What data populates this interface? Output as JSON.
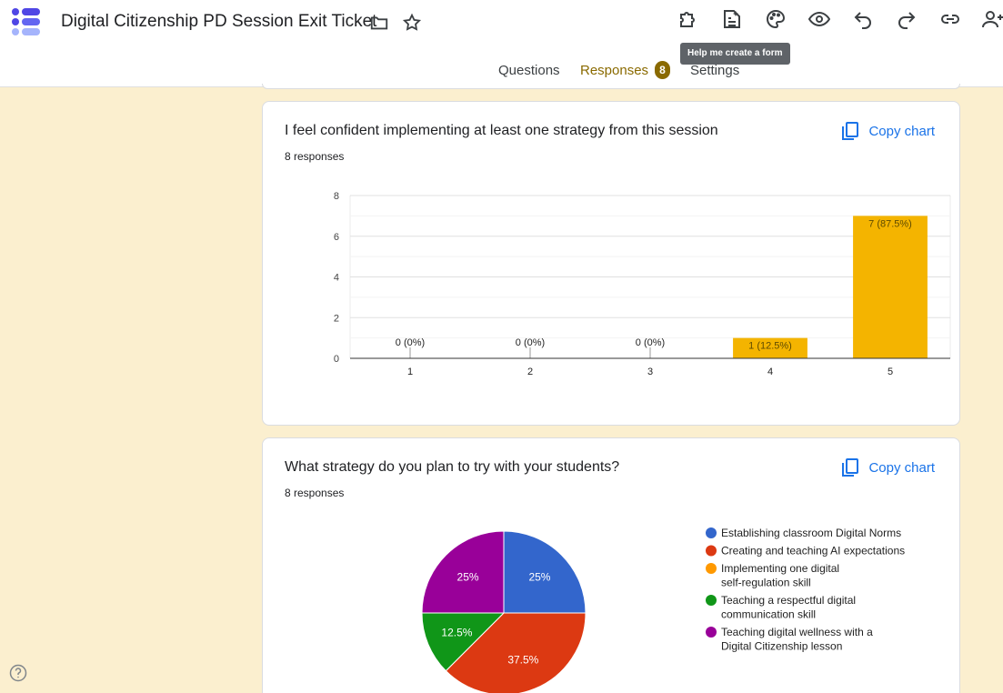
{
  "app": {
    "title": "Digital Citizenship PD Session Exit Ticket",
    "tooltip": "Help me create a form"
  },
  "icons": {
    "logo": "forms-logo-icon",
    "folder": "folder-icon",
    "star": "star-icon",
    "addons": "puzzle-icon",
    "ai_form": "ai-form-icon",
    "theme": "palette-icon",
    "preview": "eye-icon",
    "undo": "undo-icon",
    "redo": "redo-icon",
    "link": "link-icon",
    "collaborators": "add-person-icon",
    "copy": "copy-icon",
    "help": "help-icon"
  },
  "tabs": [
    {
      "label": "Questions"
    },
    {
      "label": "Responses",
      "badge": "8",
      "active": true
    },
    {
      "label": "Settings"
    }
  ],
  "colors": {
    "accent": "#8a6a00",
    "background": "#fbefcf",
    "bar": "#f4b400",
    "link": "#1a73e8"
  },
  "questions": [
    {
      "title": "I feel confident implementing at least one strategy from this session",
      "responses_label": "8 responses",
      "copy_label": "Copy chart"
    },
    {
      "title": "What strategy do you plan to try with your students?",
      "responses_label": "8 responses",
      "copy_label": "Copy chart"
    }
  ],
  "chart_data": [
    {
      "type": "bar",
      "categories": [
        "1",
        "2",
        "3",
        "4",
        "5"
      ],
      "values": [
        0,
        0,
        0,
        1,
        7
      ],
      "data_labels": [
        "0 (0%)",
        "0 (0%)",
        "0 (0%)",
        "1 (12.5%)",
        "7 (87.5%)"
      ],
      "yticks": [
        "0",
        "2",
        "4",
        "6",
        "8"
      ],
      "ylim": [
        0,
        8
      ],
      "grid": true,
      "color": "#f4b400"
    },
    {
      "type": "pie",
      "legend_position": "right",
      "slices": [
        {
          "name": "Establishing classroom Digital Norms",
          "value": 25,
          "label": "25%",
          "color": "#3366cc"
        },
        {
          "name": "Creating and teaching AI expectations",
          "value": 37.5,
          "label": "37.5%",
          "color": "#dc3912"
        },
        {
          "name": "Implementing one digital self-regulation skill",
          "value": 0,
          "label": "",
          "color": "#ff9900"
        },
        {
          "name": "Teaching a respectful digital communication skill",
          "value": 12.5,
          "label": "12.5%",
          "color": "#109618"
        },
        {
          "name": "Teaching digital wellness with a Digital Citizenship lesson",
          "value": 25,
          "label": "25%",
          "color": "#990099"
        }
      ]
    }
  ]
}
